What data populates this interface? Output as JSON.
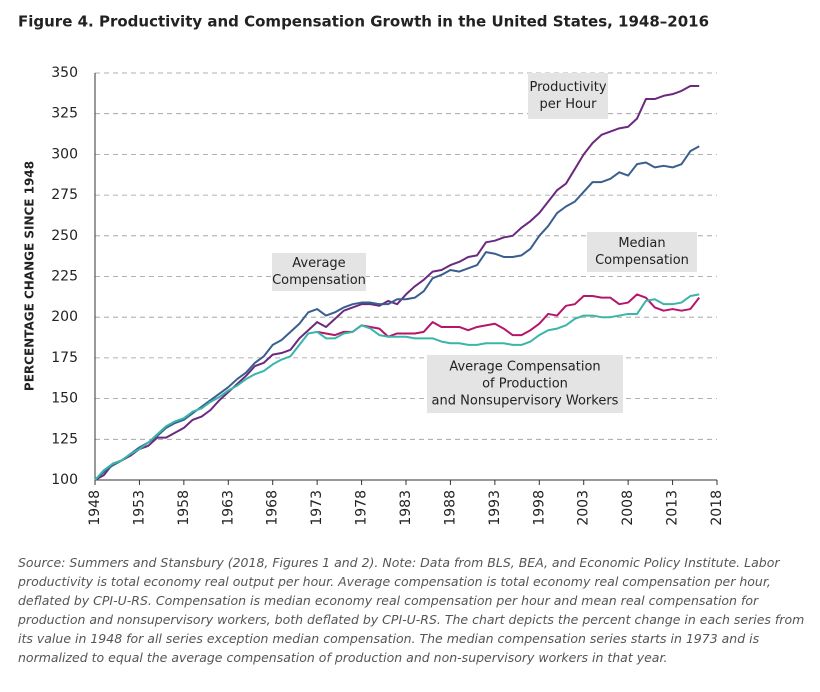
{
  "chart_data": {
    "type": "line",
    "title": "Figure 4. Productivity and Compensation Growth in the United States, 1948–2016",
    "y_label": "PERCENTAGE CHANGE SINCE 1948",
    "x": [
      1948,
      1949,
      1950,
      1951,
      1952,
      1953,
      1954,
      1955,
      1956,
      1957,
      1958,
      1959,
      1960,
      1961,
      1962,
      1963,
      1964,
      1965,
      1966,
      1967,
      1968,
      1969,
      1970,
      1971,
      1972,
      1973,
      1974,
      1975,
      1976,
      1977,
      1978,
      1979,
      1980,
      1981,
      1982,
      1983,
      1984,
      1985,
      1986,
      1987,
      1988,
      1989,
      1990,
      1991,
      1992,
      1993,
      1994,
      1995,
      1996,
      1997,
      1998,
      1999,
      2000,
      2001,
      2002,
      2003,
      2004,
      2005,
      2006,
      2007,
      2008,
      2009,
      2010,
      2011,
      2012,
      2013,
      2014,
      2015,
      2016
    ],
    "xlim": [
      1948,
      2018
    ],
    "xticks": [
      1948,
      1953,
      1958,
      1963,
      1968,
      1973,
      1978,
      1983,
      1988,
      1993,
      1998,
      2003,
      2008,
      2013,
      2018
    ],
    "ylim": [
      100,
      350
    ],
    "yticks": [
      100,
      125,
      150,
      175,
      200,
      225,
      250,
      275,
      300,
      325,
      350
    ],
    "grid": true,
    "series": [
      {
        "label": [
          "Productivity",
          "per Hour"
        ],
        "color": "#6b2a7e",
        "values": [
          100,
          103,
          110,
          112,
          115,
          119,
          121,
          126,
          126,
          129,
          132,
          137,
          139,
          143,
          149,
          154,
          159,
          164,
          170,
          172,
          177,
          178,
          180,
          187,
          192,
          197,
          194,
          199,
          204,
          206,
          208,
          208,
          207,
          210,
          208,
          214,
          219,
          223,
          228,
          229,
          232,
          234,
          237,
          238,
          246,
          247,
          249,
          250,
          255,
          259,
          264,
          271,
          278,
          282,
          291,
          300,
          307,
          312,
          314,
          316,
          317,
          322,
          334,
          334,
          336,
          337,
          339,
          342,
          342
        ]
      },
      {
        "label": [
          "Average",
          "Compensation"
        ],
        "color": "#3a5f8f",
        "values": [
          100,
          105,
          109,
          112,
          116,
          120,
          123,
          127,
          132,
          135,
          137,
          141,
          145,
          149,
          153,
          157,
          162,
          166,
          172,
          176,
          183,
          186,
          191,
          196,
          203,
          205,
          201,
          203,
          206,
          208,
          209,
          209,
          208,
          208,
          211,
          211,
          212,
          216,
          224,
          226,
          229,
          228,
          230,
          232,
          240,
          239,
          237,
          237,
          238,
          242,
          250,
          256,
          264,
          268,
          271,
          277,
          283,
          283,
          285,
          289,
          287,
          294,
          295,
          292,
          293,
          292,
          294,
          302,
          305
        ]
      },
      {
        "label": [
          "Median",
          "Compensation"
        ],
        "color": "#b5166b",
        "values": [
          null,
          null,
          null,
          null,
          null,
          null,
          null,
          null,
          null,
          null,
          null,
          null,
          null,
          null,
          null,
          null,
          null,
          null,
          null,
          null,
          null,
          null,
          null,
          null,
          null,
          191,
          190,
          189,
          191,
          191,
          195,
          194,
          193,
          188,
          190,
          190,
          190,
          191,
          197,
          194,
          194,
          194,
          192,
          194,
          195,
          196,
          193,
          189,
          189,
          192,
          196,
          202,
          201,
          207,
          208,
          213,
          213,
          212,
          212,
          208,
          209,
          214,
          212,
          206,
          204,
          205,
          204,
          205,
          212
        ]
      },
      {
        "label": [
          "Average Compensation",
          "of Production",
          "and Nonsupervisory Workers"
        ],
        "color": "#3ab5a8",
        "values": [
          100,
          106,
          110,
          112,
          116,
          119,
          123,
          128,
          133,
          136,
          138,
          142,
          144,
          148,
          151,
          155,
          158,
          162,
          165,
          167,
          171,
          174,
          176,
          183,
          190,
          191,
          187,
          187,
          190,
          191,
          195,
          193,
          189,
          188,
          188,
          188,
          187,
          187,
          187,
          185,
          184,
          184,
          183,
          183,
          184,
          184,
          184,
          183,
          183,
          185,
          189,
          192,
          193,
          195,
          199,
          201,
          201,
          200,
          200,
          201,
          202,
          202,
          210,
          211,
          208,
          208,
          209,
          213,
          214
        ]
      }
    ],
    "note": "Source: Summers and Stansbury (2018, Figures 1 and 2). Note: Data from BLS, BEA, and Economic Policy Institute. Labor productivity is total economy real output per hour. Average compensation is total economy real compensation per hour, deflated by CPI-U-RS. Compensation is median economy real compensation per hour and mean real compensation for production and nonsupervisory workers, both deflated by CPI-U-RS. The chart depicts the percent change in each series from its value in 1948 for all series exception median compensation. The median compensation series starts in 1973 and is normalized to equal the average compensation of production and non-supervisory workers in that year."
  }
}
